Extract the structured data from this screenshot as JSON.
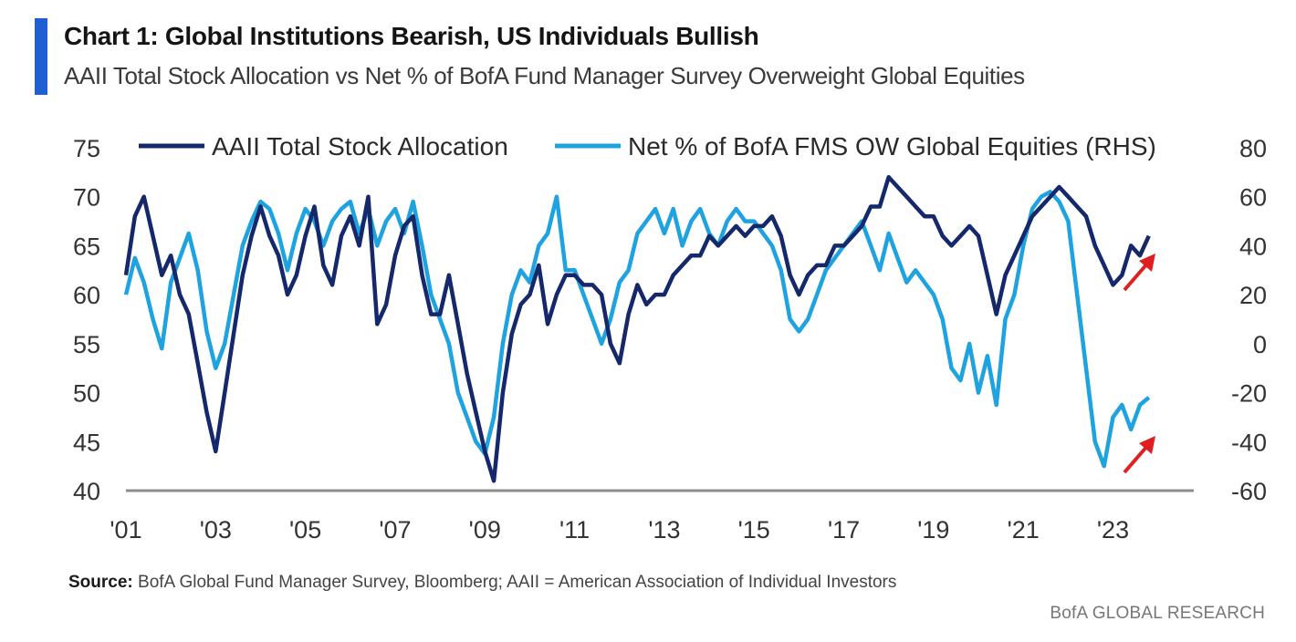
{
  "header": {
    "title": "Chart 1: Global Institutions Bearish, US Individuals Bullish",
    "subtitle": "AAII Total Stock Allocation vs Net % of BofA Fund Manager Survey Overweight Global Equities"
  },
  "footer": {
    "source_label": "Source:",
    "source_text": "BofA Global Fund Manager Survey, Bloomberg; AAII = American Association of Individual Investors",
    "brand": "BofA GLOBAL RESEARCH"
  },
  "colors": {
    "accent": "#1f5fd1",
    "aaii": "#14286b",
    "fms": "#1ea3e0",
    "arrow": "#e02020",
    "axis": "#8c8c8c"
  },
  "chart_data": {
    "type": "line",
    "title": "",
    "xlabel": "",
    "ylabel": "",
    "ylim": [
      40,
      75
    ],
    "y2lim": [
      -60,
      80
    ],
    "xlim": [
      2001,
      2024.8
    ],
    "x_ticks": [
      2001,
      2003,
      2005,
      2007,
      2009,
      2011,
      2013,
      2015,
      2017,
      2019,
      2021,
      2023
    ],
    "x_tick_labels": [
      "'01",
      "'03",
      "'05",
      "'07",
      "'09",
      "'11",
      "'13",
      "'15",
      "'17",
      "'19",
      "'21",
      "'23"
    ],
    "y_ticks": [
      75,
      70,
      65,
      60,
      55,
      50,
      45,
      40
    ],
    "y2_ticks": [
      80,
      60,
      40,
      20,
      0,
      -20,
      -40,
      -60
    ],
    "legend_position": "top",
    "annotations": [
      "red up-arrow at end of AAII line",
      "red up-arrow at end of FMS line"
    ],
    "series": [
      {
        "name": "AAII Total Stock Allocation",
        "axis": "left",
        "x": [
          2001.0,
          2001.2,
          2001.4,
          2001.6,
          2001.8,
          2002.0,
          2002.2,
          2002.4,
          2002.6,
          2002.8,
          2003.0,
          2003.2,
          2003.4,
          2003.6,
          2003.8,
          2004.0,
          2004.2,
          2004.4,
          2004.6,
          2004.8,
          2005.0,
          2005.2,
          2005.4,
          2005.6,
          2005.8,
          2006.0,
          2006.2,
          2006.4,
          2006.6,
          2006.8,
          2007.0,
          2007.2,
          2007.4,
          2007.6,
          2007.8,
          2008.0,
          2008.2,
          2008.4,
          2008.6,
          2008.8,
          2009.0,
          2009.2,
          2009.4,
          2009.6,
          2009.8,
          2010.0,
          2010.2,
          2010.4,
          2010.6,
          2010.8,
          2011.0,
          2011.2,
          2011.4,
          2011.6,
          2011.8,
          2012.0,
          2012.2,
          2012.4,
          2012.6,
          2012.8,
          2013.0,
          2013.2,
          2013.4,
          2013.6,
          2013.8,
          2014.0,
          2014.2,
          2014.4,
          2014.6,
          2014.8,
          2015.0,
          2015.2,
          2015.4,
          2015.6,
          2015.8,
          2016.0,
          2016.2,
          2016.4,
          2016.6,
          2016.8,
          2017.0,
          2017.2,
          2017.4,
          2017.6,
          2017.8,
          2018.0,
          2018.2,
          2018.4,
          2018.6,
          2018.8,
          2019.0,
          2019.2,
          2019.4,
          2019.6,
          2019.8,
          2020.0,
          2020.2,
          2020.4,
          2020.6,
          2020.8,
          2021.0,
          2021.2,
          2021.4,
          2021.6,
          2021.8,
          2022.0,
          2022.2,
          2022.4,
          2022.6,
          2022.8,
          2023.0,
          2023.2,
          2023.4,
          2023.6,
          2023.8
        ],
        "values": [
          62,
          68,
          70,
          66,
          62,
          64,
          60,
          58,
          53,
          48,
          44,
          50,
          56,
          62,
          66,
          69,
          66,
          64,
          60,
          62,
          66,
          69,
          63,
          61,
          66,
          68,
          65,
          70,
          57,
          59,
          64,
          67,
          68,
          62,
          58,
          58,
          62,
          57,
          52,
          48,
          44,
          41,
          50,
          56,
          59,
          60,
          63,
          57,
          60,
          62,
          62,
          61,
          61,
          60,
          55,
          53,
          58,
          61,
          59,
          60,
          60,
          62,
          63,
          64,
          64,
          66,
          65,
          66,
          67,
          66,
          67,
          67,
          68,
          66,
          62,
          60,
          62,
          63,
          63,
          65,
          65,
          66,
          67,
          69,
          69,
          72,
          71,
          70,
          69,
          68,
          68,
          66,
          65,
          66,
          67,
          66,
          62,
          58,
          62,
          64,
          66,
          68,
          69,
          70,
          71,
          70,
          69,
          68,
          65,
          63,
          61,
          62,
          65,
          64,
          66
        ]
      },
      {
        "name": "Net % of BofA FMS OW Global Equities (RHS)",
        "axis": "right",
        "x": [
          2001.0,
          2001.2,
          2001.4,
          2001.6,
          2001.8,
          2002.0,
          2002.2,
          2002.4,
          2002.6,
          2002.8,
          2003.0,
          2003.2,
          2003.4,
          2003.6,
          2003.8,
          2004.0,
          2004.2,
          2004.4,
          2004.6,
          2004.8,
          2005.0,
          2005.2,
          2005.4,
          2005.6,
          2005.8,
          2006.0,
          2006.2,
          2006.4,
          2006.6,
          2006.8,
          2007.0,
          2007.2,
          2007.4,
          2007.6,
          2007.8,
          2008.0,
          2008.2,
          2008.4,
          2008.6,
          2008.8,
          2009.0,
          2009.2,
          2009.4,
          2009.6,
          2009.8,
          2010.0,
          2010.2,
          2010.4,
          2010.6,
          2010.8,
          2011.0,
          2011.2,
          2011.4,
          2011.6,
          2011.8,
          2012.0,
          2012.2,
          2012.4,
          2012.6,
          2012.8,
          2013.0,
          2013.2,
          2013.4,
          2013.6,
          2013.8,
          2014.0,
          2014.2,
          2014.4,
          2014.6,
          2014.8,
          2015.0,
          2015.2,
          2015.4,
          2015.6,
          2015.8,
          2016.0,
          2016.2,
          2016.4,
          2016.6,
          2016.8,
          2017.0,
          2017.2,
          2017.4,
          2017.6,
          2017.8,
          2018.0,
          2018.2,
          2018.4,
          2018.6,
          2018.8,
          2019.0,
          2019.2,
          2019.4,
          2019.6,
          2019.8,
          2020.0,
          2020.2,
          2020.4,
          2020.6,
          2020.8,
          2021.0,
          2021.2,
          2021.4,
          2021.6,
          2021.8,
          2022.0,
          2022.2,
          2022.4,
          2022.6,
          2022.8,
          2023.0,
          2023.2,
          2023.4,
          2023.6,
          2023.8
        ],
        "values": [
          20,
          35,
          25,
          10,
          -2,
          25,
          35,
          45,
          30,
          5,
          -10,
          0,
          20,
          40,
          50,
          58,
          55,
          45,
          30,
          45,
          55,
          50,
          40,
          50,
          55,
          58,
          45,
          55,
          40,
          50,
          55,
          45,
          58,
          40,
          20,
          10,
          0,
          -20,
          -30,
          -40,
          -45,
          -30,
          0,
          20,
          30,
          25,
          40,
          45,
          60,
          30,
          30,
          20,
          10,
          0,
          10,
          25,
          30,
          45,
          50,
          55,
          45,
          55,
          40,
          50,
          55,
          45,
          40,
          50,
          55,
          50,
          50,
          45,
          40,
          30,
          10,
          5,
          10,
          20,
          30,
          35,
          40,
          45,
          50,
          40,
          30,
          45,
          35,
          25,
          30,
          25,
          20,
          10,
          -10,
          -15,
          0,
          -20,
          -5,
          -25,
          10,
          20,
          40,
          55,
          60,
          62,
          58,
          50,
          20,
          -10,
          -40,
          -50,
          -30,
          -25,
          -35,
          -25,
          -22
        ]
      }
    ]
  }
}
